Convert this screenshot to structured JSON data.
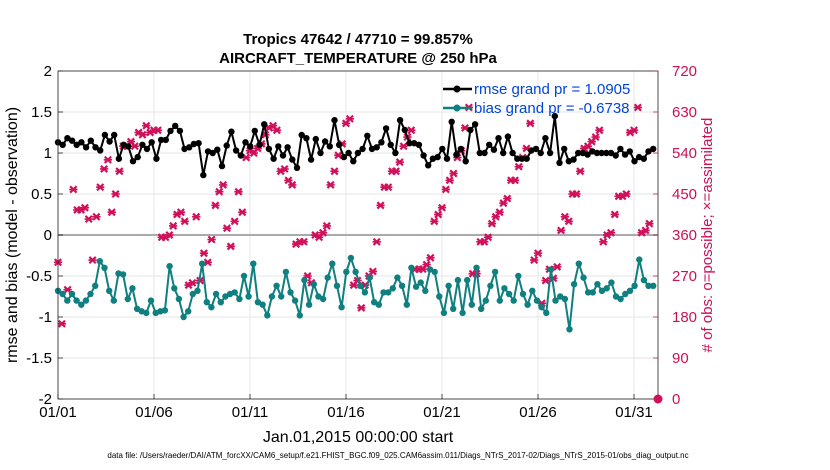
{
  "chart_data": {
    "type": "line",
    "title_line1": "Tropics 47642 / 47710 = 99.857%",
    "title_line2": "AIRCRAFT_TEMPERATURE @ 250 hPa",
    "xlabel": "Jan.01,2015 00:00:00 start",
    "ylabel_left": "rmse and bias (model - observation)",
    "ylabel_right": "# of obs: o=possible; ×=assimilated",
    "x_tick_labels": [
      "01/01",
      "01/06",
      "01/11",
      "01/16",
      "01/21",
      "01/26",
      "01/31"
    ],
    "x_tick_days": [
      0,
      5,
      10,
      15,
      20,
      25,
      30
    ],
    "xlim": [
      0,
      31.25
    ],
    "ylim_left": [
      -2,
      2
    ],
    "y_left_ticks": [
      "-2",
      "-1.5",
      "-1",
      "-0.5",
      "0",
      "0.5",
      "1",
      "1.5",
      "2"
    ],
    "ylim_right": [
      0,
      720
    ],
    "y_right_ticks": [
      "0",
      "90",
      "180",
      "270",
      "360",
      "450",
      "540",
      "630",
      "720"
    ],
    "grid": true,
    "legend_position": "top-right",
    "footer": "data file: /Users/raeder/DAI/ATM_forcXX/CAM6_setup/f.e21.FHIST_BGC.f09_025.CAM6assim.011/Diags_NTrS_2017-02/Diags_NTrS_2015-01/obs_diag_output.nc",
    "colors": {
      "rmse": "#000000",
      "bias": "#0f7f7f",
      "obs": "#d0105a",
      "zero_line": "#aaaaaa"
    },
    "series": [
      {
        "name": "rmse grand pr = 1.0905",
        "axis": "left",
        "values": [
          1.13,
          1.1,
          1.18,
          1.15,
          1.1,
          1.13,
          1.07,
          1.15,
          1.07,
          1.03,
          1.22,
          1.14,
          1.22,
          0.93,
          1.1,
          1.08,
          0.9,
          0.95,
          1.1,
          1.05,
          1.13,
          0.93,
          1.16,
          1.16,
          1.27,
          1.33,
          1.27,
          1.05,
          1.07,
          1.11,
          1.12,
          0.73,
          1.02,
          1.0,
          1.04,
          0.84,
          1.09,
          1.26,
          1.03,
          0.97,
          1.13,
          1.08,
          1.27,
          1.1,
          1.35,
          1.05,
          0.93,
          1.08,
          0.97,
          1.07,
          0.92,
          0.82,
          1.22,
          1.18,
          0.92,
          1.17,
          1.0,
          1.14,
          1.08,
          1.4,
          1.1,
          0.95,
          1.0,
          0.9,
          1.0,
          1.05,
          1.21,
          1.05,
          1.07,
          1.13,
          1.3,
          1.1,
          1.0,
          1.4,
          1.28,
          1.12,
          1.12,
          1.1,
          0.97,
          0.85,
          0.93,
          0.95,
          1.05,
          0.93,
          1.38,
          0.98,
          1.05,
          0.9,
          1.28,
          1.35,
          1.0,
          1.0,
          1.1,
          1.04,
          1.18,
          1.0,
          1.2,
          1.0,
          0.93,
          0.93,
          0.93,
          1.03,
          1.05,
          1.0,
          1.18,
          1.0,
          1.45,
          0.88,
          1.05,
          0.9,
          0.92,
          1.0,
          1.0,
          0.98,
          1.02,
          1.0,
          1.0,
          1.0,
          1.0,
          0.97,
          1.05,
          0.98,
          1.02,
          0.9,
          0.95,
          0.93,
          1.02,
          1.05
        ]
      },
      {
        "name": "bias grand pr = -0.6738",
        "axis": "left",
        "values": [
          -0.68,
          -0.72,
          -0.8,
          -0.72,
          -0.8,
          -0.85,
          -0.8,
          -0.72,
          -0.62,
          -0.32,
          -0.4,
          -0.68,
          -0.8,
          -0.47,
          -0.48,
          -0.78,
          -0.65,
          -0.9,
          -0.93,
          -0.95,
          -0.8,
          -0.95,
          -0.93,
          -0.92,
          -0.38,
          -0.65,
          -0.78,
          -1.0,
          -0.93,
          -0.72,
          -0.68,
          -0.35,
          -0.82,
          -0.88,
          -0.72,
          -0.82,
          -0.75,
          -0.72,
          -0.7,
          -0.78,
          -0.5,
          -0.75,
          -0.35,
          -0.82,
          -0.85,
          -0.98,
          -0.75,
          -0.62,
          -0.75,
          -0.45,
          -0.7,
          -0.8,
          -0.98,
          -0.55,
          -0.85,
          -0.6,
          -0.75,
          -0.78,
          -0.52,
          -0.35,
          -0.62,
          -0.88,
          -0.45,
          -0.28,
          -0.45,
          -0.62,
          -0.7,
          -0.52,
          -0.82,
          -0.85,
          -0.7,
          -0.7,
          -0.65,
          -0.52,
          -0.62,
          -0.85,
          -0.4,
          -0.63,
          -0.58,
          -0.68,
          -0.42,
          -0.45,
          -0.75,
          -0.95,
          -0.62,
          -0.9,
          -0.55,
          -0.95,
          -0.55,
          -0.85,
          -0.4,
          -0.9,
          -0.8,
          -0.62,
          -0.45,
          -0.8,
          -0.65,
          -0.72,
          -0.8,
          -0.5,
          -0.72,
          -0.85,
          -0.68,
          -0.8,
          -0.88,
          -0.95,
          -0.42,
          -0.8,
          -0.75,
          -0.78,
          -1.15,
          -0.6,
          -0.35,
          -0.52,
          -0.7,
          -0.7,
          -0.6,
          -0.68,
          -0.65,
          -0.58,
          -0.75,
          -0.78,
          -0.72,
          -0.68,
          -0.62,
          -0.3,
          -0.55,
          -0.62,
          -0.62
        ]
      },
      {
        "name": "# of obs assimilated",
        "axis": "right",
        "marker": "x",
        "points": [
          [
            0.0,
            300
          ],
          [
            0.2,
            165
          ],
          [
            0.5,
            240
          ],
          [
            0.8,
            460
          ],
          [
            1.0,
            415
          ],
          [
            1.2,
            415
          ],
          [
            1.4,
            420
          ],
          [
            1.6,
            395
          ],
          [
            1.8,
            305
          ],
          [
            2.0,
            400
          ],
          [
            2.2,
            465
          ],
          [
            2.4,
            505
          ],
          [
            2.6,
            525
          ],
          [
            2.8,
            410
          ],
          [
            3.0,
            450
          ],
          [
            3.2,
            500
          ],
          [
            3.4,
            555
          ],
          [
            3.6,
            555
          ],
          [
            3.8,
            565
          ],
          [
            4.0,
            555
          ],
          [
            4.2,
            585
          ],
          [
            4.4,
            580
          ],
          [
            4.6,
            600
          ],
          [
            4.8,
            585
          ],
          [
            5.0,
            590
          ],
          [
            5.2,
            590
          ],
          [
            5.4,
            355
          ],
          [
            5.6,
            355
          ],
          [
            5.8,
            360
          ],
          [
            6.0,
            380
          ],
          [
            6.2,
            405
          ],
          [
            6.4,
            410
          ],
          [
            6.6,
            390
          ],
          [
            6.8,
            250
          ],
          [
            7.0,
            255
          ],
          [
            7.2,
            400
          ],
          [
            7.4,
            260
          ],
          [
            7.6,
            320
          ],
          [
            7.8,
            300
          ],
          [
            8.0,
            350
          ],
          [
            8.2,
            425
          ],
          [
            8.4,
            455
          ],
          [
            8.6,
            470
          ],
          [
            8.8,
            375
          ],
          [
            9.0,
            335
          ],
          [
            9.2,
            390
          ],
          [
            9.4,
            455
          ],
          [
            9.6,
            410
          ],
          [
            9.8,
            530
          ],
          [
            10.0,
            545
          ],
          [
            10.2,
            540
          ],
          [
            10.4,
            550
          ],
          [
            10.6,
            560
          ],
          [
            10.8,
            580
          ],
          [
            11.0,
            595
          ],
          [
            11.2,
            600
          ],
          [
            11.4,
            590
          ],
          [
            11.6,
            500
          ],
          [
            11.8,
            505
          ],
          [
            12.0,
            480
          ],
          [
            12.2,
            470
          ],
          [
            12.4,
            340
          ],
          [
            12.6,
            345
          ],
          [
            12.8,
            345
          ],
          [
            13.0,
            270
          ],
          [
            13.2,
            255
          ],
          [
            13.4,
            360
          ],
          [
            13.6,
            355
          ],
          [
            13.8,
            365
          ],
          [
            14.0,
            380
          ],
          [
            14.2,
            470
          ],
          [
            14.4,
            500
          ],
          [
            14.6,
            535
          ],
          [
            14.8,
            560
          ],
          [
            15.0,
            605
          ],
          [
            15.2,
            615
          ],
          [
            15.4,
            250
          ],
          [
            15.6,
            260
          ],
          [
            15.8,
            200
          ],
          [
            16.0,
            250
          ],
          [
            16.2,
            270
          ],
          [
            16.4,
            280
          ],
          [
            16.6,
            345
          ],
          [
            16.8,
            425
          ],
          [
            17.0,
            465
          ],
          [
            17.2,
            465
          ],
          [
            17.4,
            500
          ],
          [
            17.6,
            500
          ],
          [
            17.8,
            520
          ],
          [
            18.0,
            555
          ],
          [
            18.2,
            575
          ],
          [
            18.4,
            590
          ],
          [
            18.6,
            285
          ],
          [
            18.8,
            285
          ],
          [
            19.0,
            285
          ],
          [
            19.2,
            295
          ],
          [
            19.4,
            310
          ],
          [
            19.6,
            390
          ],
          [
            19.8,
            405
          ],
          [
            20.0,
            420
          ],
          [
            20.2,
            460
          ],
          [
            20.4,
            480
          ],
          [
            20.6,
            495
          ],
          [
            20.8,
            530
          ],
          [
            21.0,
            545
          ],
          [
            21.2,
            595
          ],
          [
            21.4,
            640
          ],
          [
            21.6,
            275
          ],
          [
            21.8,
            275
          ],
          [
            22.0,
            345
          ],
          [
            22.2,
            345
          ],
          [
            22.4,
            355
          ],
          [
            22.6,
            385
          ],
          [
            22.8,
            400
          ],
          [
            23.0,
            410
          ],
          [
            23.2,
            430
          ],
          [
            23.4,
            440
          ],
          [
            23.6,
            480
          ],
          [
            23.8,
            480
          ],
          [
            24.0,
            510
          ],
          [
            24.2,
            530
          ],
          [
            24.4,
            550
          ],
          [
            24.6,
            605
          ],
          [
            24.8,
            305
          ],
          [
            25.0,
            320
          ],
          [
            25.2,
            210
          ],
          [
            25.4,
            260
          ],
          [
            25.6,
            285
          ],
          [
            25.8,
            265
          ],
          [
            26.0,
            290
          ],
          [
            26.2,
            370
          ],
          [
            26.4,
            400
          ],
          [
            26.6,
            390
          ],
          [
            26.8,
            450
          ],
          [
            27.0,
            450
          ],
          [
            27.2,
            500
          ],
          [
            27.4,
            550
          ],
          [
            27.6,
            555
          ],
          [
            27.8,
            565
          ],
          [
            28.0,
            575
          ],
          [
            28.2,
            590
          ],
          [
            28.4,
            345
          ],
          [
            28.6,
            360
          ],
          [
            28.8,
            365
          ],
          [
            29.0,
            405
          ],
          [
            29.2,
            445
          ],
          [
            29.4,
            445
          ],
          [
            29.6,
            450
          ],
          [
            29.8,
            585
          ],
          [
            30.0,
            590
          ],
          [
            30.2,
            640
          ],
          [
            30.4,
            365
          ],
          [
            30.6,
            370
          ],
          [
            30.8,
            385
          ]
        ]
      }
    ]
  }
}
